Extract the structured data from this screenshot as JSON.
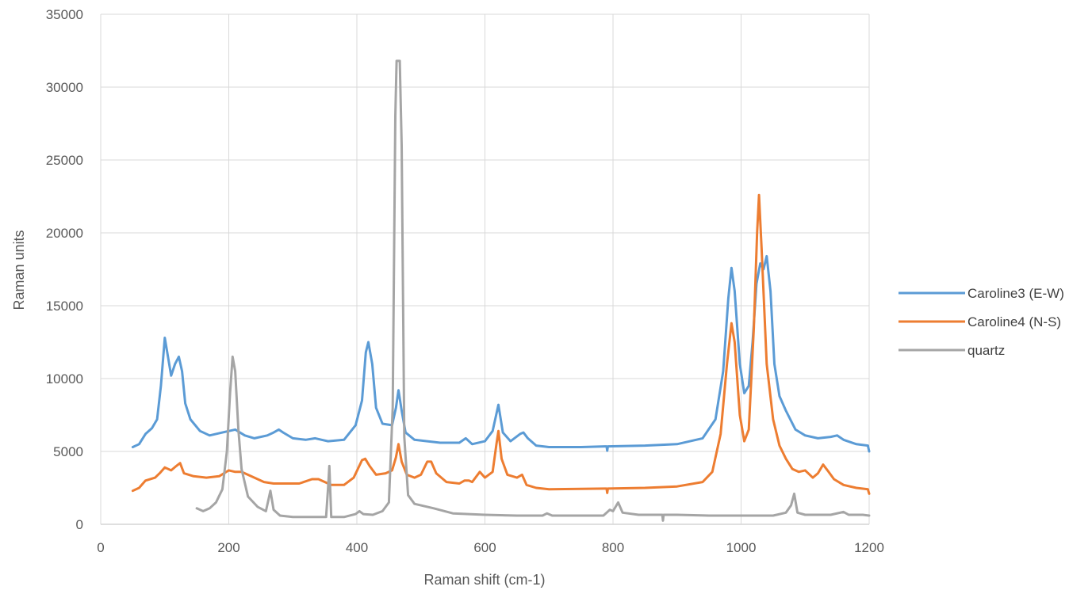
{
  "chart_data": {
    "type": "line",
    "title": "",
    "xlabel": "Raman shift (cm-1)",
    "ylabel": "Raman units",
    "xlim": [
      0,
      1200
    ],
    "ylim": [
      0,
      35000
    ],
    "x_ticks": [
      0,
      200,
      400,
      600,
      800,
      1000,
      1200
    ],
    "y_ticks": [
      0,
      5000,
      10000,
      15000,
      20000,
      25000,
      30000,
      35000
    ],
    "grid": true,
    "legend_position": "right",
    "series": [
      {
        "name": "Caroline3 (E-W)",
        "color": "#5b9bd5",
        "points": [
          [
            50,
            5300
          ],
          [
            60,
            5500
          ],
          [
            70,
            6200
          ],
          [
            80,
            6600
          ],
          [
            88,
            7200
          ],
          [
            94,
            9500
          ],
          [
            100,
            12800
          ],
          [
            105,
            11500
          ],
          [
            110,
            10200
          ],
          [
            116,
            11000
          ],
          [
            122,
            11500
          ],
          [
            127,
            10500
          ],
          [
            132,
            8300
          ],
          [
            140,
            7200
          ],
          [
            155,
            6400
          ],
          [
            170,
            6100
          ],
          [
            190,
            6300
          ],
          [
            210,
            6500
          ],
          [
            225,
            6100
          ],
          [
            240,
            5900
          ],
          [
            260,
            6100
          ],
          [
            270,
            6300
          ],
          [
            278,
            6500
          ],
          [
            285,
            6300
          ],
          [
            300,
            5900
          ],
          [
            320,
            5800
          ],
          [
            335,
            5900
          ],
          [
            345,
            5800
          ],
          [
            355,
            5700
          ],
          [
            380,
            5800
          ],
          [
            398,
            6800
          ],
          [
            408,
            8500
          ],
          [
            414,
            11800
          ],
          [
            418,
            12500
          ],
          [
            424,
            11000
          ],
          [
            430,
            8000
          ],
          [
            440,
            6900
          ],
          [
            455,
            6800
          ],
          [
            461,
            8000
          ],
          [
            465,
            9200
          ],
          [
            470,
            7800
          ],
          [
            476,
            6300
          ],
          [
            490,
            5800
          ],
          [
            510,
            5700
          ],
          [
            530,
            5600
          ],
          [
            560,
            5600
          ],
          [
            570,
            5900
          ],
          [
            580,
            5500
          ],
          [
            600,
            5700
          ],
          [
            612,
            6400
          ],
          [
            621,
            8200
          ],
          [
            628,
            6300
          ],
          [
            640,
            5700
          ],
          [
            655,
            6200
          ],
          [
            660,
            6300
          ],
          [
            667,
            5900
          ],
          [
            680,
            5400
          ],
          [
            700,
            5300
          ],
          [
            750,
            5300
          ],
          [
            790,
            5350
          ],
          [
            791,
            5050
          ],
          [
            792,
            5350
          ],
          [
            850,
            5400
          ],
          [
            900,
            5500
          ],
          [
            940,
            5900
          ],
          [
            960,
            7200
          ],
          [
            972,
            10500
          ],
          [
            980,
            15500
          ],
          [
            985,
            17600
          ],
          [
            990,
            16000
          ],
          [
            998,
            11000
          ],
          [
            1005,
            9000
          ],
          [
            1012,
            9500
          ],
          [
            1018,
            12500
          ],
          [
            1024,
            16500
          ],
          [
            1030,
            17900
          ],
          [
            1035,
            17500
          ],
          [
            1040,
            18400
          ],
          [
            1046,
            16000
          ],
          [
            1052,
            11000
          ],
          [
            1060,
            8800
          ],
          [
            1070,
            7800
          ],
          [
            1085,
            6500
          ],
          [
            1100,
            6100
          ],
          [
            1120,
            5900
          ],
          [
            1140,
            6000
          ],
          [
            1150,
            6100
          ],
          [
            1160,
            5800
          ],
          [
            1180,
            5500
          ],
          [
            1198,
            5400
          ],
          [
            1200,
            5000
          ]
        ]
      },
      {
        "name": "Caroline4 (N-S)",
        "color": "#ed7d31",
        "points": [
          [
            50,
            2300
          ],
          [
            60,
            2500
          ],
          [
            70,
            3000
          ],
          [
            85,
            3200
          ],
          [
            92,
            3500
          ],
          [
            100,
            3900
          ],
          [
            110,
            3700
          ],
          [
            118,
            4000
          ],
          [
            124,
            4200
          ],
          [
            130,
            3500
          ],
          [
            145,
            3300
          ],
          [
            165,
            3200
          ],
          [
            185,
            3300
          ],
          [
            200,
            3700
          ],
          [
            210,
            3600
          ],
          [
            220,
            3600
          ],
          [
            240,
            3200
          ],
          [
            255,
            2900
          ],
          [
            270,
            2800
          ],
          [
            290,
            2800
          ],
          [
            310,
            2800
          ],
          [
            330,
            3100
          ],
          [
            340,
            3100
          ],
          [
            350,
            2900
          ],
          [
            360,
            2700
          ],
          [
            380,
            2700
          ],
          [
            395,
            3200
          ],
          [
            408,
            4400
          ],
          [
            413,
            4500
          ],
          [
            420,
            4000
          ],
          [
            430,
            3400
          ],
          [
            445,
            3500
          ],
          [
            455,
            3700
          ],
          [
            461,
            4600
          ],
          [
            465,
            5500
          ],
          [
            470,
            4300
          ],
          [
            478,
            3400
          ],
          [
            490,
            3200
          ],
          [
            500,
            3400
          ],
          [
            510,
            4300
          ],
          [
            516,
            4300
          ],
          [
            524,
            3500
          ],
          [
            540,
            2900
          ],
          [
            560,
            2800
          ],
          [
            568,
            3000
          ],
          [
            575,
            3000
          ],
          [
            580,
            2900
          ],
          [
            592,
            3600
          ],
          [
            600,
            3200
          ],
          [
            612,
            3600
          ],
          [
            618,
            5500
          ],
          [
            621,
            6400
          ],
          [
            626,
            4500
          ],
          [
            635,
            3400
          ],
          [
            650,
            3200
          ],
          [
            658,
            3400
          ],
          [
            665,
            2700
          ],
          [
            680,
            2500
          ],
          [
            700,
            2400
          ],
          [
            790,
            2450
          ],
          [
            791,
            2150
          ],
          [
            792,
            2450
          ],
          [
            850,
            2500
          ],
          [
            900,
            2600
          ],
          [
            940,
            2900
          ],
          [
            955,
            3600
          ],
          [
            968,
            6200
          ],
          [
            978,
            11000
          ],
          [
            985,
            13800
          ],
          [
            990,
            12500
          ],
          [
            998,
            7500
          ],
          [
            1005,
            5700
          ],
          [
            1012,
            6500
          ],
          [
            1020,
            13500
          ],
          [
            1025,
            20000
          ],
          [
            1028,
            22600
          ],
          [
            1032,
            19000
          ],
          [
            1040,
            11000
          ],
          [
            1050,
            7200
          ],
          [
            1060,
            5400
          ],
          [
            1070,
            4500
          ],
          [
            1080,
            3800
          ],
          [
            1090,
            3600
          ],
          [
            1100,
            3700
          ],
          [
            1112,
            3200
          ],
          [
            1120,
            3500
          ],
          [
            1128,
            4100
          ],
          [
            1135,
            3700
          ],
          [
            1145,
            3100
          ],
          [
            1160,
            2700
          ],
          [
            1180,
            2500
          ],
          [
            1198,
            2400
          ],
          [
            1200,
            2100
          ]
        ]
      },
      {
        "name": "quartz",
        "color": "#a5a5a5",
        "points": [
          [
            150,
            1100
          ],
          [
            160,
            900
          ],
          [
            170,
            1100
          ],
          [
            180,
            1500
          ],
          [
            190,
            2400
          ],
          [
            197,
            5000
          ],
          [
            202,
            9000
          ],
          [
            206,
            11500
          ],
          [
            210,
            10500
          ],
          [
            215,
            6500
          ],
          [
            220,
            3800
          ],
          [
            230,
            1900
          ],
          [
            245,
            1200
          ],
          [
            258,
            900
          ],
          [
            265,
            2300
          ],
          [
            270,
            1000
          ],
          [
            280,
            600
          ],
          [
            300,
            500
          ],
          [
            330,
            500
          ],
          [
            352,
            500
          ],
          [
            355,
            2500
          ],
          [
            357,
            4000
          ],
          [
            360,
            500
          ],
          [
            380,
            500
          ],
          [
            398,
            700
          ],
          [
            404,
            900
          ],
          [
            410,
            700
          ],
          [
            425,
            650
          ],
          [
            440,
            900
          ],
          [
            450,
            1500
          ],
          [
            456,
            8000
          ],
          [
            460,
            28000
          ],
          [
            462,
            31800
          ],
          [
            467,
            31800
          ],
          [
            470,
            26000
          ],
          [
            474,
            6000
          ],
          [
            480,
            2000
          ],
          [
            490,
            1400
          ],
          [
            500,
            1300
          ],
          [
            520,
            1100
          ],
          [
            550,
            750
          ],
          [
            600,
            650
          ],
          [
            650,
            600
          ],
          [
            690,
            600
          ],
          [
            697,
            750
          ],
          [
            705,
            600
          ],
          [
            760,
            600
          ],
          [
            785,
            600
          ],
          [
            795,
            1000
          ],
          [
            800,
            900
          ],
          [
            808,
            1500
          ],
          [
            815,
            800
          ],
          [
            840,
            650
          ],
          [
            877,
            650
          ],
          [
            878,
            250
          ],
          [
            879,
            650
          ],
          [
            900,
            650
          ],
          [
            950,
            600
          ],
          [
            1000,
            600
          ],
          [
            1050,
            600
          ],
          [
            1070,
            800
          ],
          [
            1078,
            1300
          ],
          [
            1083,
            2100
          ],
          [
            1088,
            800
          ],
          [
            1100,
            650
          ],
          [
            1140,
            650
          ],
          [
            1160,
            850
          ],
          [
            1168,
            650
          ],
          [
            1190,
            650
          ],
          [
            1200,
            600
          ]
        ]
      }
    ]
  }
}
